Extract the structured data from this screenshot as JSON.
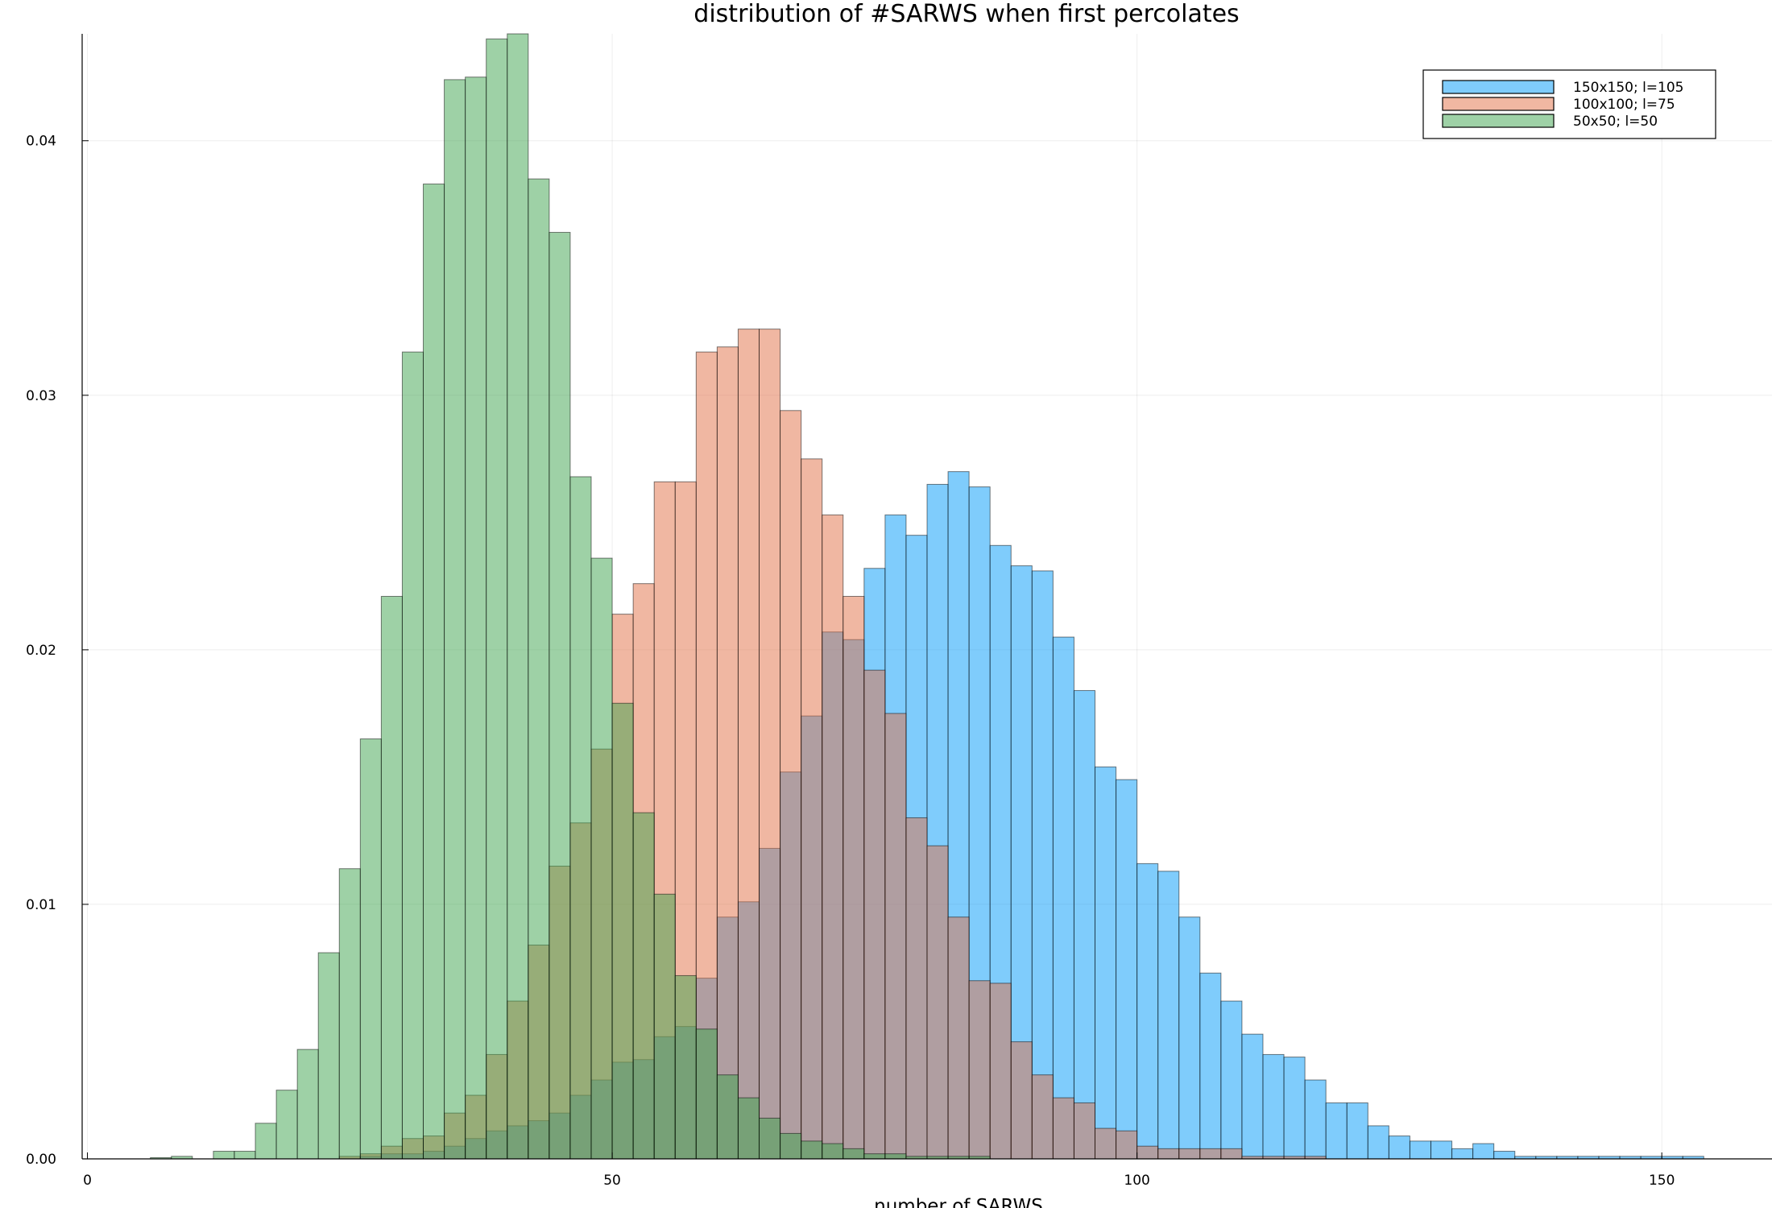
{
  "chart_data": {
    "type": "bar",
    "title": "distribution of #SARWS when first percolates",
    "xlabel": "number of SARWS",
    "ylabel": "",
    "xlim": [
      -0.5,
      160.5
    ],
    "ylim": [
      0,
      0.0442
    ],
    "xticks": [
      0,
      50,
      100,
      150
    ],
    "yticks": [
      0.0,
      0.01,
      0.02,
      0.03,
      0.04
    ],
    "ytick_labels": [
      "0.00",
      "0.01",
      "0.02",
      "0.03",
      "0.04"
    ],
    "grid": true,
    "legend_position": "top-right",
    "bin_width": 2,
    "series": [
      {
        "name": "150x150; l=105",
        "color": "#009af9",
        "opacity": 0.5,
        "bin_start": 22,
        "values": [
          0,
          0,
          0.0001,
          0.0002,
          0.0002,
          0.0003,
          0.0005,
          0.0008,
          0.0011,
          0.0013,
          0.0015,
          0.0018,
          0.0025,
          0.0031,
          0.0038,
          0.0039,
          0.0048,
          0.0052,
          0.0071,
          0.0095,
          0.0101,
          0.0122,
          0.0152,
          0.0174,
          0.0207,
          0.0204,
          0.0232,
          0.0253,
          0.0245,
          0.0265,
          0.027,
          0.0264,
          0.0241,
          0.0233,
          0.0231,
          0.0205,
          0.0184,
          0.0154,
          0.0149,
          0.0116,
          0.0113,
          0.0095,
          0.0073,
          0.0062,
          0.0049,
          0.0041,
          0.004,
          0.0031,
          0.0022,
          0.0022,
          0.0013,
          0.0009,
          0.0007,
          0.0007,
          0.0004,
          0.0006,
          0.0003,
          0.0001,
          0.0001,
          0.0001,
          0.0001,
          0.0001,
          0.0001,
          0.0001,
          0.0001,
          0.0001
        ]
      },
      {
        "name": "100x100; l=75",
        "color": "#e26f46",
        "opacity": 0.5,
        "bin_start": 18,
        "values": [
          0,
          0,
          0,
          0.0001,
          0.0002,
          0.0005,
          0.0008,
          0.0009,
          0.0018,
          0.0025,
          0.0041,
          0.0062,
          0.0084,
          0.0115,
          0.0132,
          0.0161,
          0.0214,
          0.0226,
          0.0266,
          0.0266,
          0.0317,
          0.0319,
          0.0326,
          0.0326,
          0.0294,
          0.0275,
          0.0253,
          0.0221,
          0.0192,
          0.0175,
          0.0134,
          0.0123,
          0.0095,
          0.007,
          0.0069,
          0.0046,
          0.0033,
          0.0024,
          0.0022,
          0.0012,
          0.0011,
          0.0005,
          0.0004,
          0.0004,
          0.0004,
          0.0004,
          0.0001,
          0.0001,
          0.0001,
          0.0001
        ]
      },
      {
        "name": "50x50; l=50",
        "color": "#3da44d",
        "opacity": 0.5,
        "bin_start": 6,
        "values": [
          5e-05,
          0.0001,
          0,
          0.0003,
          0.0003,
          0.0014,
          0.0027,
          0.0043,
          0.0081,
          0.0114,
          0.0165,
          0.0221,
          0.0317,
          0.0383,
          0.0424,
          0.0425,
          0.044,
          0.0442,
          0.0385,
          0.0364,
          0.0268,
          0.0236,
          0.0179,
          0.0136,
          0.0104,
          0.0072,
          0.0051,
          0.0033,
          0.0024,
          0.0016,
          0.001,
          0.0007,
          0.0006,
          0.0004,
          0.0002,
          0.0002,
          0.0001,
          0.0001,
          0.0001,
          0.0001
        ]
      }
    ]
  }
}
